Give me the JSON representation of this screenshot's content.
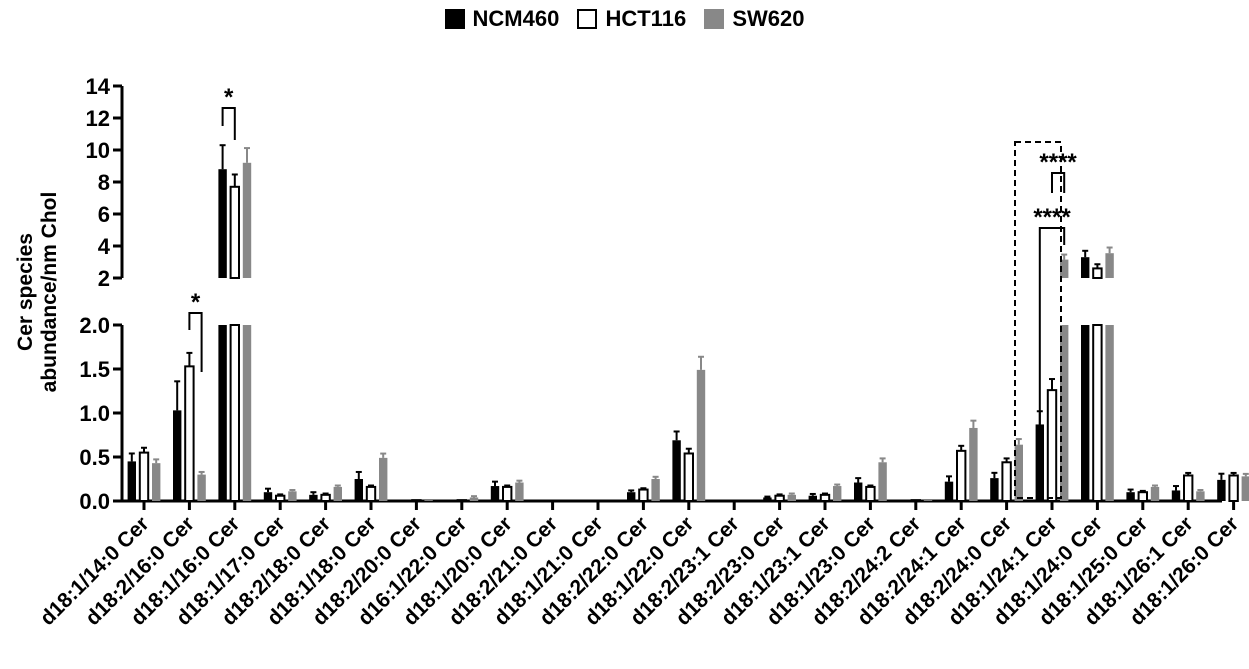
{
  "chart_data": {
    "type": "bar",
    "ylabel_line1": "Cer species",
    "ylabel_line2": "abundance/nm Chol",
    "legend": [
      {
        "label": "NCM460",
        "color": "#000000"
      },
      {
        "label": "HCT116",
        "color": "#ffffff"
      },
      {
        "label": "SW620",
        "color": "#888888"
      }
    ],
    "lower_axis": {
      "ylim": [
        0,
        2.0
      ],
      "ticks": [
        "0.0",
        "0.5",
        "1.0",
        "1.5",
        "2.0"
      ]
    },
    "upper_axis": {
      "ylim": [
        2,
        14
      ],
      "ticks": [
        "2",
        "4",
        "6",
        "8",
        "10",
        "12",
        "14"
      ]
    },
    "categories": [
      "d18:1/14:0 Cer",
      "d18:2/16:0 Cer",
      "d18:1/16:0 Cer",
      "d18:1/17:0 Cer",
      "d18:2/18:0 Cer",
      "d18:1/18:0 Cer",
      "d18:2/20:0 Cer",
      "d16:1/22:0 Cer",
      "d18:1/20:0 Cer",
      "d18:2/21:0 Cer",
      "d18:1/21:0 Cer",
      "d18:2/22:0 Cer",
      "d18:1/22:0 Cer",
      "d18:2/23:1 Cer",
      "d18:2/23:0 Cer",
      "d18:1/23:1 Cer",
      "d18:1/23:0 Cer",
      "d18:2/24:2 Cer",
      "d18:2/24:1 Cer",
      "d18:2/24:0 Cer",
      "d18:1/24:1 Cer",
      "d18:1/24:0 Cer",
      "d18:1/25:0 Cer",
      "d18:1/26:1 Cer",
      "d18:1/26:0 Cer"
    ],
    "series": [
      {
        "name": "NCM460",
        "values": [
          0.45,
          1.03,
          8.8,
          0.1,
          0.07,
          0.25,
          0.01,
          0.01,
          0.17,
          0.0,
          0.0,
          0.1,
          0.69,
          0.0,
          0.04,
          0.06,
          0.21,
          0.01,
          0.22,
          0.26,
          0.87,
          3.3,
          0.1,
          0.12,
          0.24
        ],
        "errors": [
          0.09,
          0.33,
          1.5,
          0.04,
          0.03,
          0.08,
          0.01,
          0.01,
          0.05,
          0.0,
          0.0,
          0.02,
          0.1,
          0.0,
          0.01,
          0.02,
          0.05,
          0.01,
          0.06,
          0.06,
          0.15,
          0.4,
          0.03,
          0.05,
          0.07
        ]
      },
      {
        "name": "HCT116",
        "values": [
          0.55,
          1.53,
          7.7,
          0.06,
          0.07,
          0.16,
          0.01,
          0.01,
          0.16,
          0.0,
          0.0,
          0.13,
          0.54,
          0.0,
          0.06,
          0.07,
          0.16,
          0.01,
          0.57,
          0.44,
          1.26,
          2.6,
          0.1,
          0.29,
          0.29
        ]
      },
      {
        "name": "SW620",
        "values": [
          0.43,
          0.3,
          9.2,
          0.11,
          0.16,
          0.49,
          0.01,
          0.04,
          0.21,
          0.0,
          0.0,
          0.25,
          1.49,
          0.0,
          0.07,
          0.17,
          0.44,
          0.01,
          0.83,
          0.64,
          3.15,
          3.55,
          0.16,
          0.11,
          0.28
        ]
      }
    ],
    "annotations": [
      {
        "label": "*",
        "category_index": 1,
        "pair": "HCT116 vs SW620"
      },
      {
        "label": "*",
        "category_index": 2,
        "pair": "NCM460 vs HCT116"
      },
      {
        "label": "****",
        "category_index": 20,
        "pair": "HCT116 vs SW620"
      },
      {
        "label": "****",
        "category_index": 20,
        "pair": "NCM460 vs SW620"
      }
    ]
  }
}
